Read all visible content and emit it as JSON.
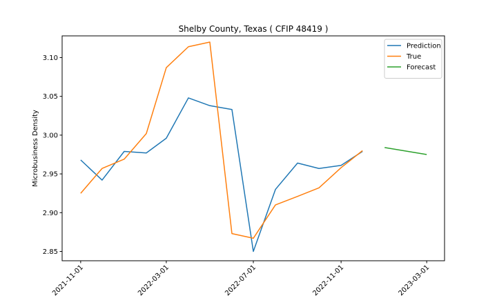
{
  "chart_data": {
    "type": "line",
    "title": "Shelby County, Texas ( CFIP 48419 )",
    "xlabel": "",
    "ylabel": "Microbusiness Density",
    "xlim": [
      "2021-10-06",
      "2023-03-26"
    ],
    "ylim": [
      2.838,
      3.128
    ],
    "grid": false,
    "legend_position": "top-right",
    "y_ticks": [
      2.85,
      2.9,
      2.95,
      3.0,
      3.05,
      3.1
    ],
    "y_tick_labels": [
      "2.85",
      "2.90",
      "2.95",
      "3.00",
      "3.05",
      "3.10"
    ],
    "x_ticks": [
      "2021-11-01",
      "2022-03-01",
      "2022-07-01",
      "2022-11-01",
      "2023-03-01"
    ],
    "series": [
      {
        "name": "Prediction",
        "color": "#1f77b4",
        "x": [
          "2021-11-01",
          "2021-12-01",
          "2022-01-01",
          "2022-02-01",
          "2022-03-01",
          "2022-04-01",
          "2022-05-01",
          "2022-06-01",
          "2022-07-01",
          "2022-08-01",
          "2022-09-01",
          "2022-10-01",
          "2022-11-01",
          "2022-12-01"
        ],
        "y": [
          2.968,
          2.942,
          2.979,
          2.977,
          2.996,
          3.048,
          3.038,
          3.033,
          2.85,
          2.93,
          2.964,
          2.957,
          2.961,
          2.979
        ]
      },
      {
        "name": "True",
        "color": "#ff7f0e",
        "x": [
          "2021-11-01",
          "2021-12-01",
          "2022-01-01",
          "2022-02-01",
          "2022-03-01",
          "2022-04-01",
          "2022-05-01",
          "2022-06-01",
          "2022-07-01",
          "2022-08-01",
          "2022-09-01",
          "2022-10-01",
          "2022-11-01",
          "2022-12-01"
        ],
        "y": [
          2.925,
          2.957,
          2.969,
          3.002,
          3.087,
          3.114,
          3.12,
          2.873,
          2.867,
          2.91,
          2.921,
          2.932,
          2.958,
          2.98
        ]
      },
      {
        "name": "Forecast",
        "color": "#2ca02c",
        "x": [
          "2023-01-01",
          "2023-03-01"
        ],
        "y": [
          2.984,
          2.975
        ]
      }
    ]
  }
}
